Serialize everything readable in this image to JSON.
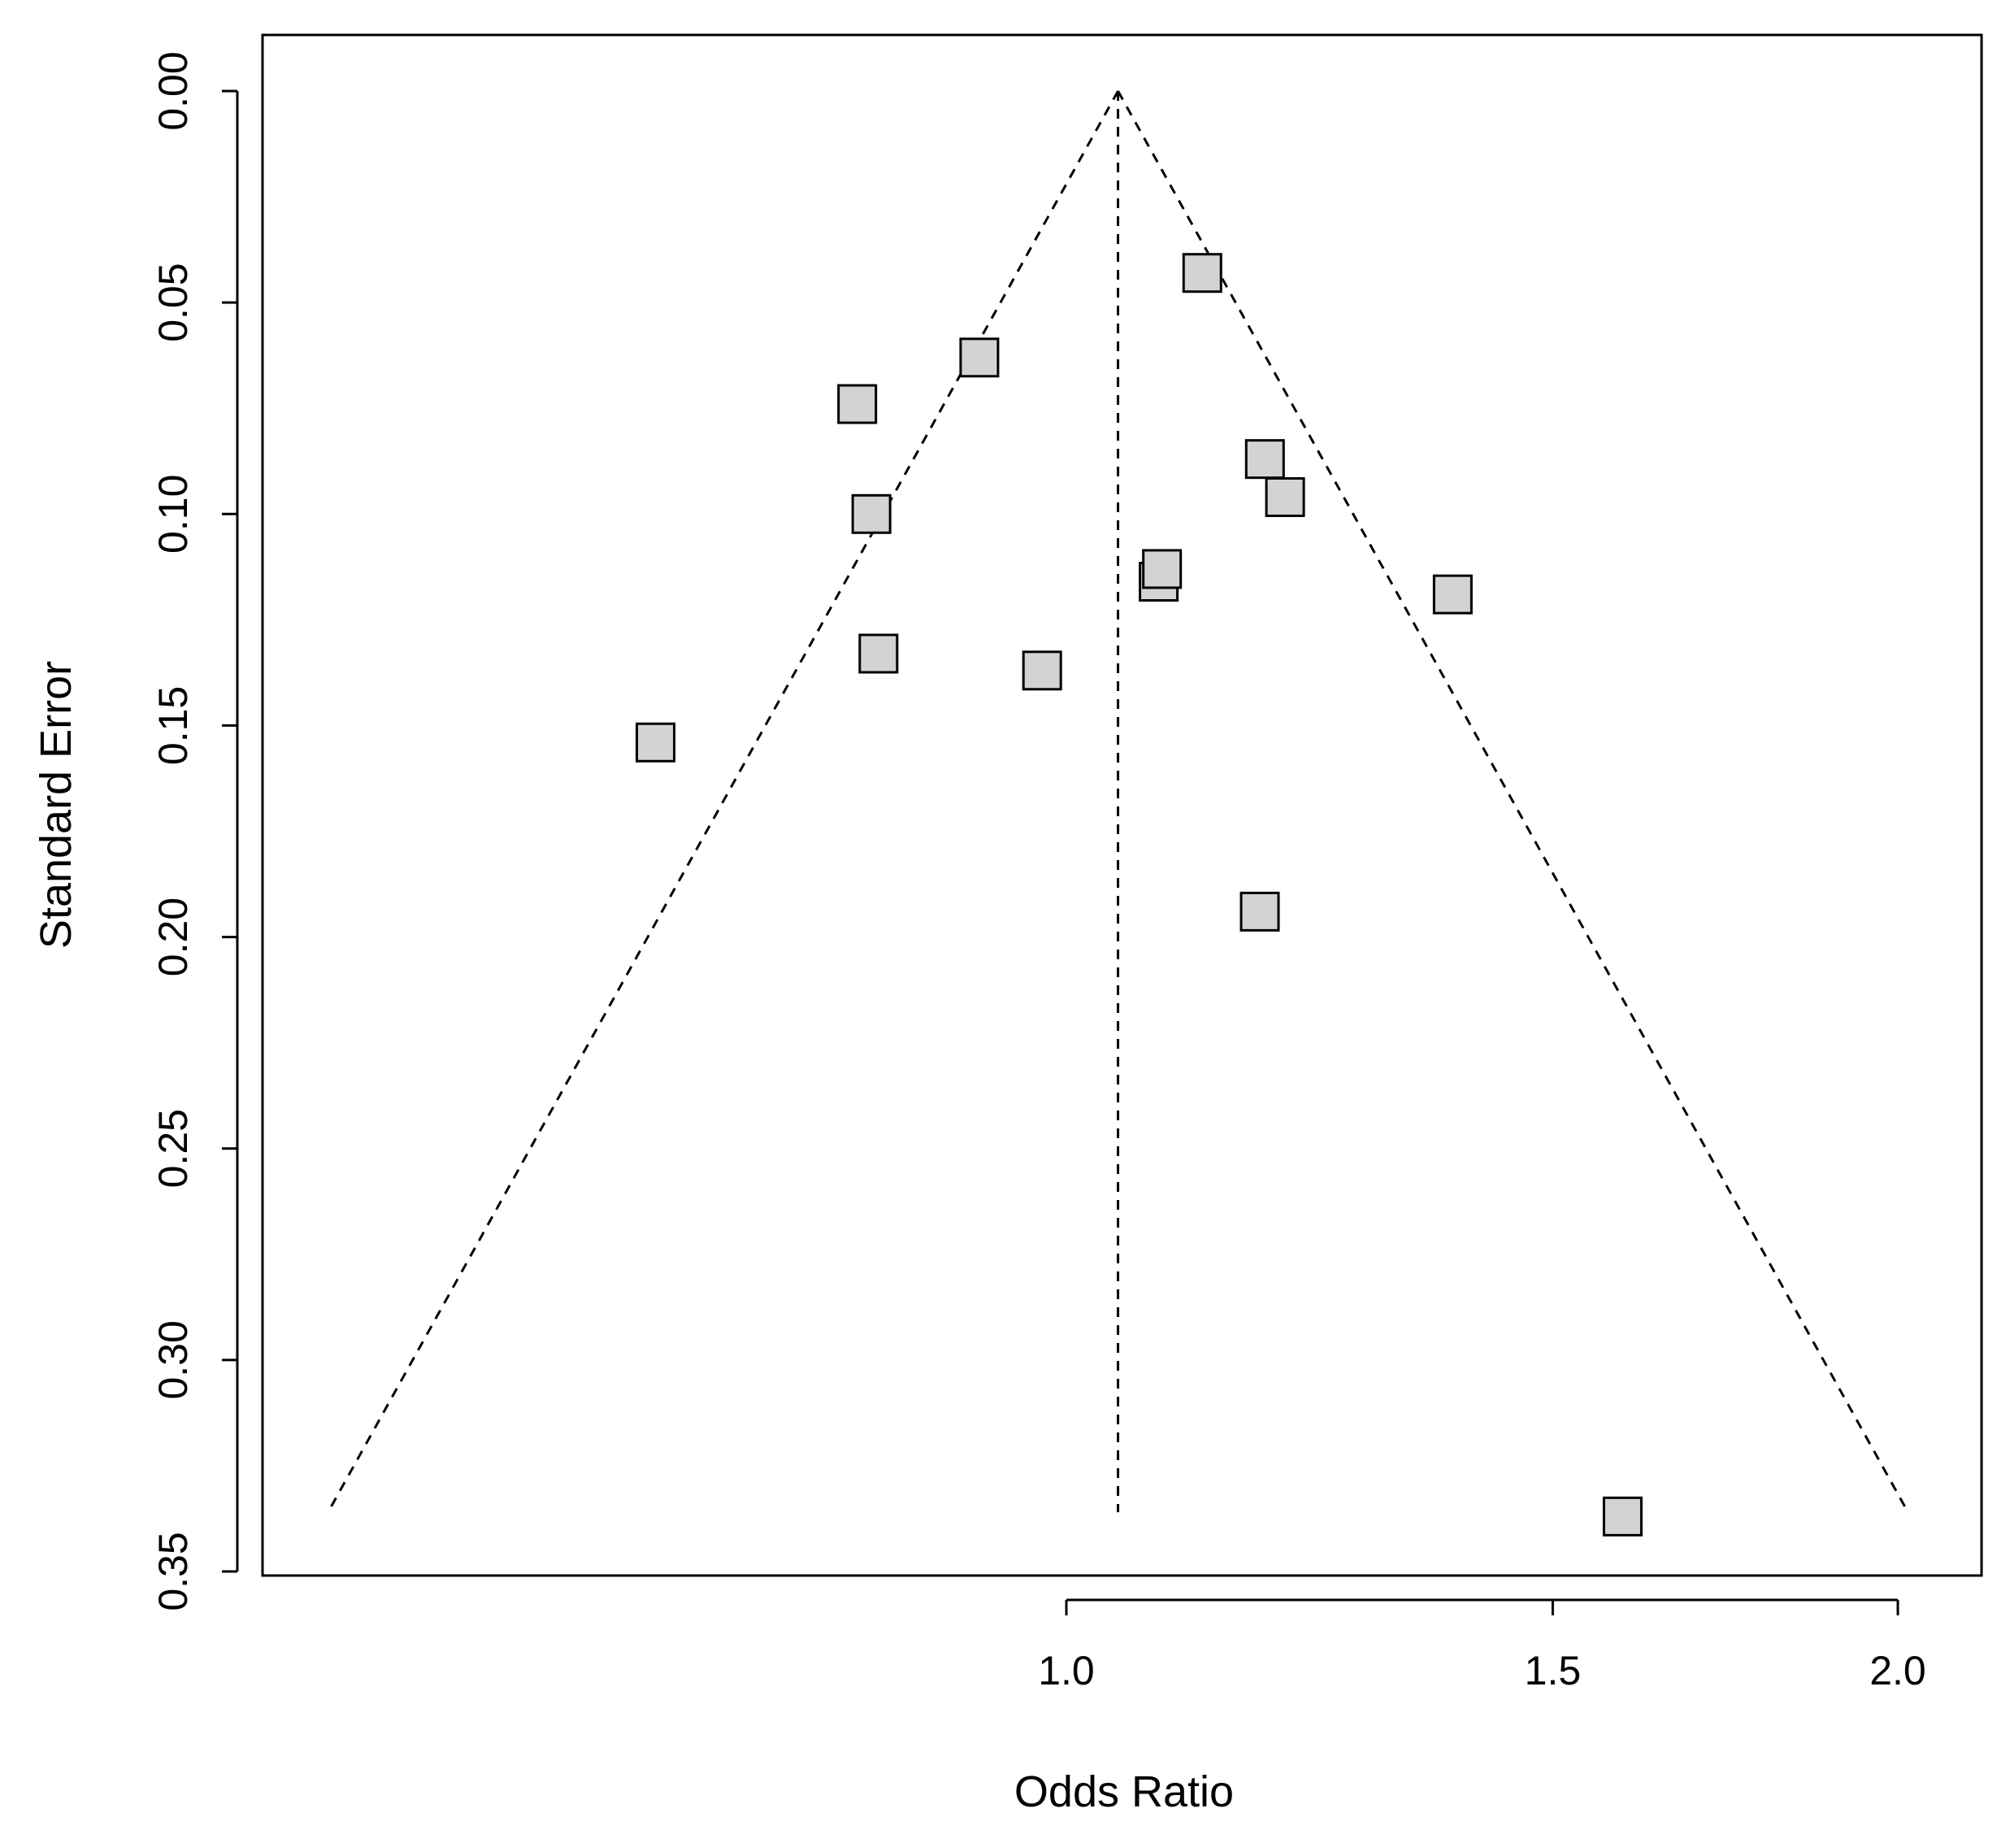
{
  "chart_data": {
    "type": "scatter",
    "title": "",
    "xlabel": "Odds Ratio",
    "ylabel": "Standard Error",
    "x_scale": "log",
    "y_reversed": true,
    "xticks": [
      {
        "value": 1.0,
        "label": "1.0"
      },
      {
        "value": 1.5,
        "label": "1.5"
      },
      {
        "value": 2.0,
        "label": "2.0"
      }
    ],
    "yticks": [
      {
        "value": 0.0,
        "label": "0.00"
      },
      {
        "value": 0.05,
        "label": "0.05"
      },
      {
        "value": 0.1,
        "label": "0.10"
      },
      {
        "value": 0.15,
        "label": "0.15"
      },
      {
        "value": 0.2,
        "label": "0.20"
      },
      {
        "value": 0.25,
        "label": "0.25"
      },
      {
        "value": 0.3,
        "label": "0.30"
      },
      {
        "value": 0.35,
        "label": "0.35"
      }
    ],
    "xlim": [
      0.507,
      2.212
    ],
    "ylim": [
      0.35,
      0.0
    ],
    "summary_or": 1.044,
    "funnel_max_se": 0.336,
    "points": [
      {
        "x": 1.12,
        "y": 0.043
      },
      {
        "x": 0.93,
        "y": 0.063
      },
      {
        "x": 0.84,
        "y": 0.074
      },
      {
        "x": 1.18,
        "y": 0.087
      },
      {
        "x": 1.2,
        "y": 0.096
      },
      {
        "x": 0.85,
        "y": 0.1
      },
      {
        "x": 1.08,
        "y": 0.116
      },
      {
        "x": 1.083,
        "y": 0.113
      },
      {
        "x": 1.38,
        "y": 0.119
      },
      {
        "x": 0.855,
        "y": 0.133
      },
      {
        "x": 0.98,
        "y": 0.137
      },
      {
        "x": 0.71,
        "y": 0.154
      },
      {
        "x": 1.175,
        "y": 0.194
      },
      {
        "x": 1.59,
        "y": 0.337
      }
    ],
    "colors": {
      "marker_fill": "#d3d3d3",
      "marker_stroke": "#000000",
      "lines": "#000000"
    },
    "grid": false,
    "legend": "none"
  }
}
